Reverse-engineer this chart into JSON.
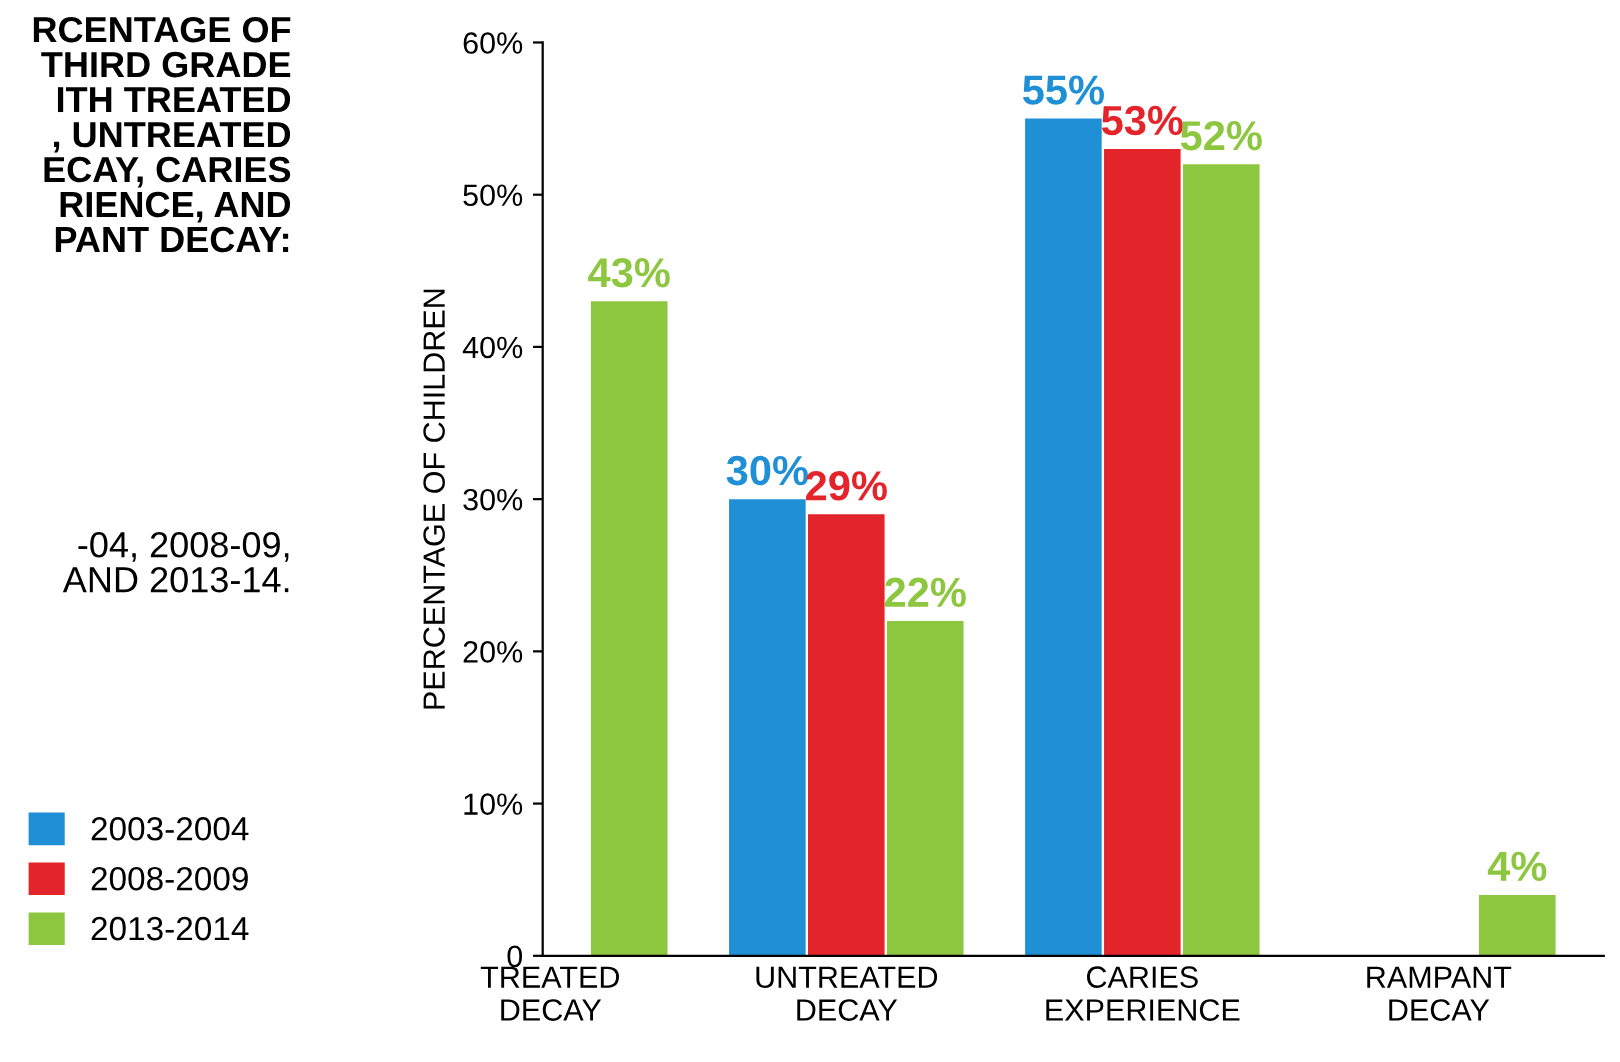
{
  "chart_data": {
    "type": "bar",
    "title": "RCENTAGE OF\nTHIRD GRADE\nITH TREATED\n, UNTREATED\nECAY, CARIES\nRIENCE, AND\nPANT DECAY:",
    "subtitle": "-04, 2008-09,\nAND 2013-14.",
    "ylabel": "PERCENTAGE OF CHILDREN",
    "categories": [
      "TREATED\nDECAY",
      "UNTREATED\nDECAY",
      "CARIES\nEXPERIENCE",
      "RAMPANT\nDECAY"
    ],
    "series": [
      {
        "name": "2003-2004",
        "color": "#1f8fd6",
        "values": [
          null,
          30,
          55,
          null
        ],
        "value_labels": [
          null,
          "30%",
          "55%",
          null
        ]
      },
      {
        "name": "2008-2009",
        "color": "#e3242b",
        "values": [
          null,
          29,
          53,
          null
        ],
        "value_labels": [
          null,
          "29%",
          "53%",
          null
        ]
      },
      {
        "name": "2013-2014",
        "color": "#8dc63f",
        "values": [
          43,
          22,
          52,
          4
        ],
        "value_labels": [
          "43%",
          "22%",
          "52%",
          "4%"
        ]
      }
    ],
    "ylim": [
      0,
      60
    ],
    "yticks": [
      {
        "value": 0,
        "label": "0"
      },
      {
        "value": 10,
        "label": "10%"
      },
      {
        "value": 20,
        "label": "20%"
      },
      {
        "value": 30,
        "label": "30%"
      },
      {
        "value": 40,
        "label": "40%"
      },
      {
        "value": 50,
        "label": "50%"
      },
      {
        "value": 60,
        "label": "60%"
      }
    ],
    "grid": false,
    "legend": "left"
  }
}
